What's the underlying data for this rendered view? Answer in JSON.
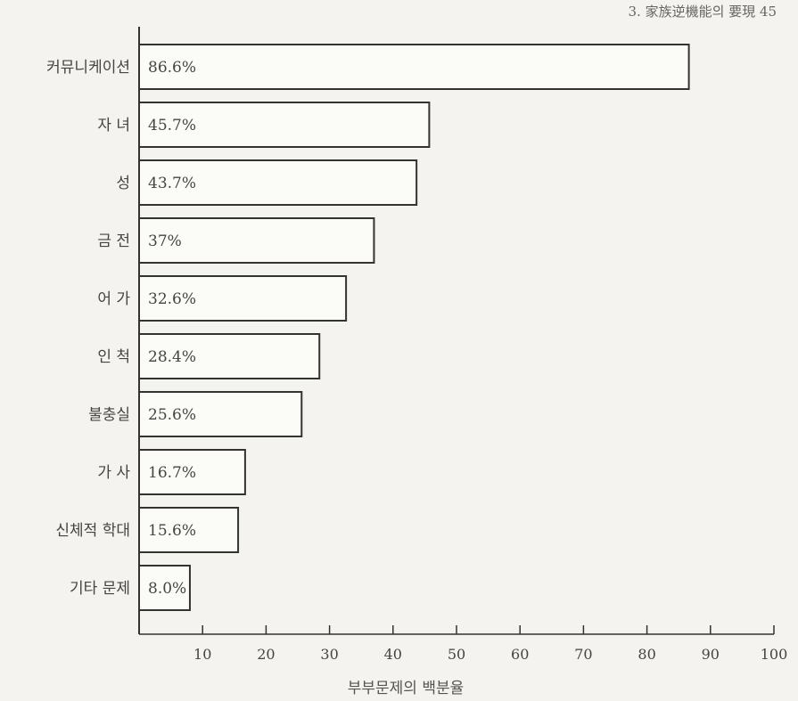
{
  "header_text": "3. 家族逆機能의 要現 45",
  "chart_data": {
    "type": "bar",
    "orientation": "horizontal",
    "categories": [
      "커뮤니케이션",
      "자 녀",
      "성",
      "금 전",
      "어 가",
      "인 척",
      "불충실",
      "가 사",
      "신체적 학대",
      "기타 문제"
    ],
    "values": [
      86.6,
      45.7,
      43.7,
      37,
      32.6,
      28.4,
      25.6,
      16.7,
      15.6,
      8.0
    ],
    "value_labels": [
      "86.6%",
      "45.7%",
      "43.7%",
      "37%",
      "32.6%",
      "28.4%",
      "25.6%",
      "16.7%",
      "15.6%",
      "8.0%"
    ],
    "xlabel": "부부문제의 백분율",
    "ylabel": "",
    "xlim": [
      0,
      100
    ],
    "xticks": [
      10,
      20,
      30,
      40,
      50,
      60,
      70,
      80,
      90,
      100
    ],
    "grid": false
  }
}
